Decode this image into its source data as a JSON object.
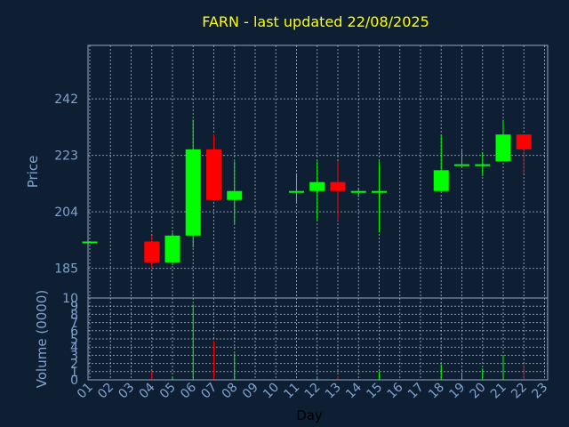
{
  "chart_data": {
    "type": "candlestick",
    "title": "FARN - last updated 22/08/2025",
    "ylabel": "Price",
    "volume_label": "Volume (0000)",
    "xlabel": "Day",
    "ylim": [
      175,
      260
    ],
    "yticks": [
      185,
      204,
      223,
      242
    ],
    "volume_ylim": [
      0,
      10
    ],
    "volume_ticks": [
      0,
      1,
      2,
      3,
      4,
      5,
      6,
      7,
      8,
      9,
      10
    ],
    "x_ticks": [
      "01",
      "02",
      "03",
      "04",
      "05",
      "06",
      "07",
      "08",
      "09",
      "10",
      "11",
      "12",
      "13",
      "14",
      "15",
      "16",
      "17",
      "18",
      "19",
      "20",
      "21",
      "22",
      "23"
    ],
    "colors": {
      "up": "#00ff00",
      "down": "#ff0000",
      "background": "#0f1f33",
      "axis_text": "#7fa3d0",
      "title": "#ffff00"
    },
    "candles": [
      {
        "day": "01",
        "open": 194,
        "high": 194,
        "low": 194,
        "close": 194,
        "volume": 0.0
      },
      {
        "day": "04",
        "open": 194,
        "high": 196,
        "low": 185,
        "close": 187,
        "volume": 1.1
      },
      {
        "day": "05",
        "open": 187,
        "high": 197,
        "low": 186,
        "close": 196,
        "volume": 0.3
      },
      {
        "day": "06",
        "open": 196,
        "high": 235,
        "low": 192,
        "close": 225,
        "volume": 9.2
      },
      {
        "day": "07",
        "open": 225,
        "high": 230,
        "low": 208,
        "close": 208,
        "volume": 4.8
      },
      {
        "day": "08",
        "open": 208,
        "high": 221,
        "low": 200,
        "close": 211,
        "volume": 3.2
      },
      {
        "day": "11",
        "open": 211,
        "high": 217,
        "low": 207,
        "close": 211,
        "volume": 0.0
      },
      {
        "day": "12",
        "open": 211,
        "high": 221,
        "low": 201,
        "close": 214,
        "volume": 0.2
      },
      {
        "day": "13",
        "open": 214,
        "high": 221,
        "low": 201,
        "close": 211,
        "volume": 0.4
      },
      {
        "day": "14",
        "open": 211,
        "high": 212,
        "low": 209,
        "close": 211,
        "volume": 0.1
      },
      {
        "day": "15",
        "open": 211,
        "high": 221,
        "low": 197,
        "close": 211,
        "volume": 1.0
      },
      {
        "day": "18",
        "open": 211,
        "high": 230,
        "low": 211,
        "close": 218,
        "volume": 1.9
      },
      {
        "day": "19",
        "open": 220,
        "high": 225,
        "low": 220,
        "close": 220,
        "volume": 0.9
      },
      {
        "day": "20",
        "open": 220,
        "high": 224,
        "low": 216,
        "close": 220,
        "volume": 1.4
      },
      {
        "day": "21",
        "open": 221,
        "high": 235,
        "low": 221,
        "close": 230,
        "volume": 3.0
      },
      {
        "day": "22",
        "open": 230,
        "high": 230,
        "low": 217,
        "close": 225,
        "volume": 1.9
      }
    ]
  }
}
